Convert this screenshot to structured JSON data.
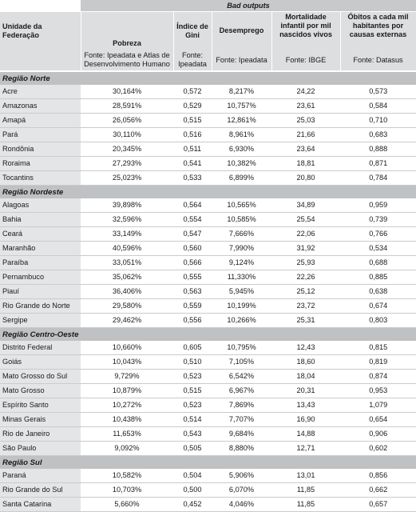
{
  "table": {
    "band_title": "Bad outputs",
    "headers": [
      "Unidade da Federação",
      "Pobreza",
      "Índice de Gini",
      "Desemprego",
      "Mortalidade infantil por mil nascidos vivos",
      "Óbitos a cada mil habitantes por causas externas"
    ],
    "sources": [
      "",
      "Fonte: Ipeadata e Atlas de Desenvolvimento Humano",
      "Fonte: Ipeadata",
      "Fonte: Ipeadata",
      "Fonte: IBGE",
      "Fonte: Datasus"
    ],
    "regions": [
      {
        "name": "Região Norte",
        "rows": [
          [
            "Acre",
            "30,164%",
            "0,572",
            "8,217%",
            "24,22",
            "0,573"
          ],
          [
            "Amazonas",
            "28,591%",
            "0,529",
            "10,757%",
            "23,61",
            "0,584"
          ],
          [
            "Amapá",
            "26,056%",
            "0,515",
            "12,861%",
            "25,03",
            "0,710"
          ],
          [
            "Pará",
            "30,110%",
            "0,516",
            "8,961%",
            "21,66",
            "0,683"
          ],
          [
            "Rondônia",
            "20,345%",
            "0,511",
            "6,930%",
            "23,64",
            "0,888"
          ],
          [
            "Roraima",
            "27,293%",
            "0,541",
            "10,382%",
            "18,81",
            "0,871"
          ],
          [
            "Tocantins",
            "25,023%",
            "0,533",
            "6,899%",
            "20,80",
            "0,784"
          ]
        ]
      },
      {
        "name": "Região Nordeste",
        "rows": [
          [
            "Alagoas",
            "39,898%",
            "0,564",
            "10,565%",
            "34,89",
            "0,959"
          ],
          [
            "Bahia",
            "32,596%",
            "0,554",
            "10,585%",
            "25,54",
            "0,739"
          ],
          [
            "Ceará",
            "33,149%",
            "0,547",
            "7,666%",
            "22,06",
            "0,766"
          ],
          [
            "Maranhão",
            "40,596%",
            "0,560",
            "7,990%",
            "31,92",
            "0,534"
          ],
          [
            "Paraíba",
            "33,051%",
            "0,566",
            "9,124%",
            "25,93",
            "0,688"
          ],
          [
            "Pernambuco",
            "35,062%",
            "0,555",
            "11,330%",
            "22,26",
            "0,885"
          ],
          [
            "Piauí",
            "36,406%",
            "0,563",
            "5,945%",
            "25,12",
            "0,638"
          ],
          [
            "Rio Grande do Norte",
            "29,580%",
            "0,559",
            "10,199%",
            "23,72",
            "0,674"
          ],
          [
            "Sergipe",
            "29,462%",
            "0,556",
            "10,266%",
            "25,31",
            "0,803"
          ]
        ]
      },
      {
        "name": "Região Centro-Oeste",
        "rows": [
          [
            "Distrito Federal",
            "10,660%",
            "0,605",
            "10,795%",
            "12,43",
            "0,815"
          ],
          [
            "Goiás",
            "10,043%",
            "0,510",
            "7,105%",
            "18,60",
            "0,819"
          ],
          [
            "Mato Grosso do Sul",
            "9,729%",
            "0,523",
            "6,542%",
            "18,04",
            "0,874"
          ],
          [
            "Mato Grosso",
            "10,879%",
            "0,515",
            "6,967%",
            "20,31",
            "0,953"
          ],
          [
            "Espírito Santo",
            "10,272%",
            "0,523",
            "7,869%",
            "13,43",
            "1,079"
          ],
          [
            "Minas Gerais",
            "10,438%",
            "0,514",
            "7,707%",
            "16,90",
            "0,654"
          ],
          [
            "Rio de Janeiro",
            "11,653%",
            "0,543",
            "9,684%",
            "14,88",
            "0,906"
          ],
          [
            "São Paulo",
            "9,092%",
            "0,505",
            "8,880%",
            "12,71",
            "0,602"
          ]
        ]
      },
      {
        "name": "Região Sul",
        "rows": [
          [
            "Paraná",
            "10,582%",
            "0,504",
            "5,906%",
            "13,01",
            "0,856"
          ],
          [
            "Rio Grande do Sul",
            "10,703%",
            "0,500",
            "6,070%",
            "11,85",
            "0,662"
          ],
          [
            "Santa Catarina",
            "5,660%",
            "0,452",
            "4,046%",
            "11,85",
            "0,657"
          ]
        ]
      }
    ]
  }
}
